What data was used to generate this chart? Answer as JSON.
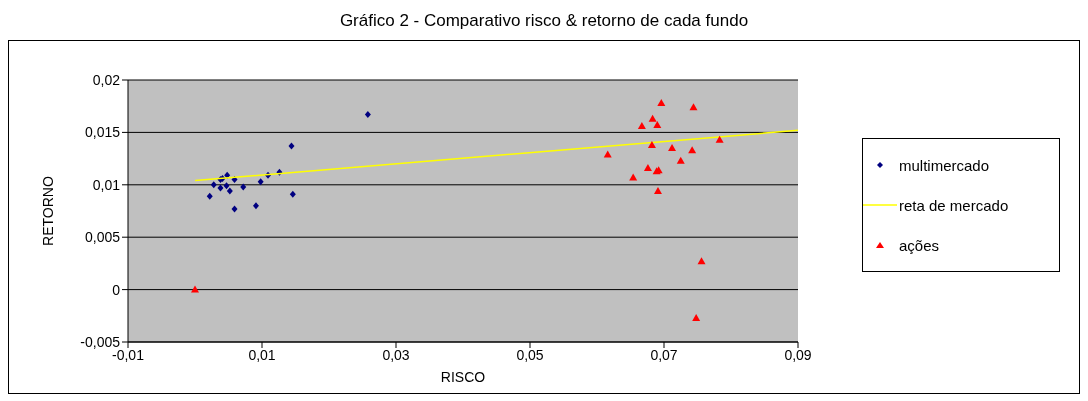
{
  "chart_data": {
    "type": "scatter",
    "title": "Gráfico 2 - Comparativo risco & retorno de cada fundo",
    "xlabel": "RISCO",
    "ylabel": "RETORNO",
    "xlim": [
      -0.01,
      0.09
    ],
    "xticks": [
      {
        "value": -0.01,
        "label": "-0,01"
      },
      {
        "value": 0.01,
        "label": "0,01"
      },
      {
        "value": 0.03,
        "label": "0,03"
      },
      {
        "value": 0.05,
        "label": "0,05"
      },
      {
        "value": 0.07,
        "label": "0,07"
      },
      {
        "value": 0.09,
        "label": "0,09"
      }
    ],
    "ylim": [
      -0.005,
      0.02
    ],
    "yticks": [
      {
        "value": -0.005,
        "label": "-0,005"
      },
      {
        "value": 0,
        "label": "0"
      },
      {
        "value": 0.005,
        "label": "0,005"
      },
      {
        "value": 0.01,
        "label": "0,01"
      },
      {
        "value": 0.015,
        "label": "0,015"
      },
      {
        "value": 0.02,
        "label": "0,02"
      }
    ],
    "grid": "y",
    "legend": "right",
    "series": [
      {
        "name": "multimercado",
        "marker": "diamond",
        "color": "#000080",
        "x": [
          0.0022,
          0.0028,
          0.0035,
          0.0038,
          0.0041,
          0.0038,
          0.0048,
          0.0047,
          0.0052,
          0.0059,
          0.0059,
          0.0072,
          0.0091,
          0.0098,
          0.0109,
          0.0126,
          0.0144,
          0.0146,
          0.0258
        ],
        "values": [
          0.0089,
          0.01,
          null,
          0.0105,
          0.0106,
          0.0097,
          0.0109,
          0.0099,
          0.0094,
          0.0105,
          0.0077,
          0.0098,
          0.008,
          0.0103,
          0.0109,
          0.0112,
          0.0137,
          0.0091,
          0.0167
        ]
      },
      {
        "name": "reta de mercado",
        "type": "line",
        "marker": "none",
        "color": "#ffff00",
        "x": [
          0,
          0.09
        ],
        "values": [
          0.0104,
          0.0152
        ]
      },
      {
        "name": "ações",
        "marker": "triangle",
        "color": "#ff0000",
        "x": [
          0,
          0.0696,
          0.0744,
          0.0683,
          0.0667,
          0.069,
          0.0682,
          0.0712,
          0.0742,
          0.0783,
          0.0616,
          0.0725,
          0.0676,
          0.0689,
          0.0692,
          0.0654,
          0.0691,
          0.0756,
          0.0748
        ],
        "values": [
          0,
          0.0178,
          0.0174,
          0.0163,
          0.0156,
          0.0157,
          0.0138,
          0.0135,
          0.0133,
          0.0143,
          0.0129,
          0.0123,
          0.0116,
          0.0113,
          0.0114,
          0.0107,
          0.0094,
          0.0027,
          -0.0027
        ]
      }
    ]
  }
}
